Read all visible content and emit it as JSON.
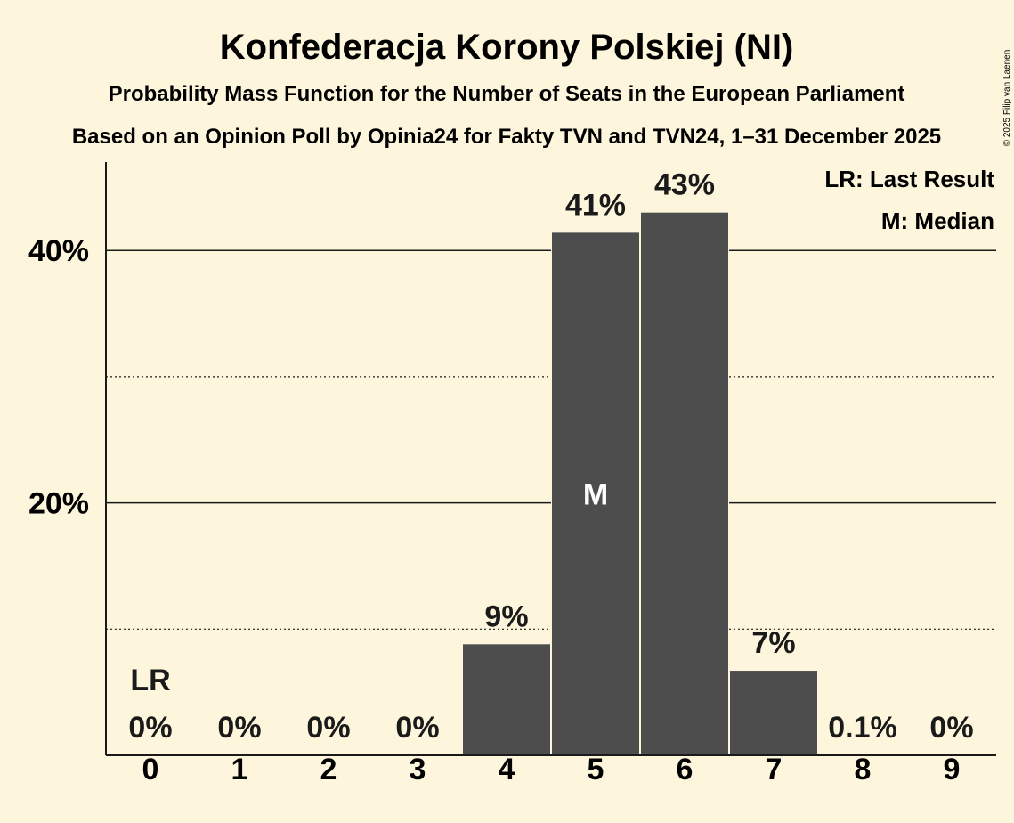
{
  "chart_data": {
    "type": "bar",
    "title": "Konfederacja Korony Polskiej (NI)",
    "subtitle": "Probability Mass Function for the Number of Seats in the European Parliament",
    "subtitle2": "Based on an Opinion Poll by Opinia24 for Fakty TVN and TVN24, 1–31 December 2025",
    "copyright": "© 2025 Filip van Laenen",
    "categories": [
      "0",
      "1",
      "2",
      "3",
      "4",
      "5",
      "6",
      "7",
      "8",
      "9"
    ],
    "values": [
      0,
      0,
      0,
      0,
      8.8,
      41.4,
      43.0,
      6.7,
      0.1,
      0
    ],
    "value_labels": [
      "0%",
      "0%",
      "0%",
      "0%",
      "9%",
      "41%",
      "43%",
      "7%",
      "0.1%",
      "0%"
    ],
    "ylim": [
      0,
      47
    ],
    "y_ticks": [
      {
        "value": 20,
        "label": "20%"
      },
      {
        "value": 40,
        "label": "40%"
      }
    ],
    "minor_gridlines": [
      10,
      30
    ],
    "last_result": {
      "category": "0",
      "label": "LR"
    },
    "median": {
      "category": "5",
      "label": "M"
    },
    "legend": {
      "position": "top-right",
      "items": [
        "LR: Last Result",
        "M: Median"
      ]
    },
    "bar_color": "#4d4d4d",
    "background_color": "#fdf6dc"
  }
}
